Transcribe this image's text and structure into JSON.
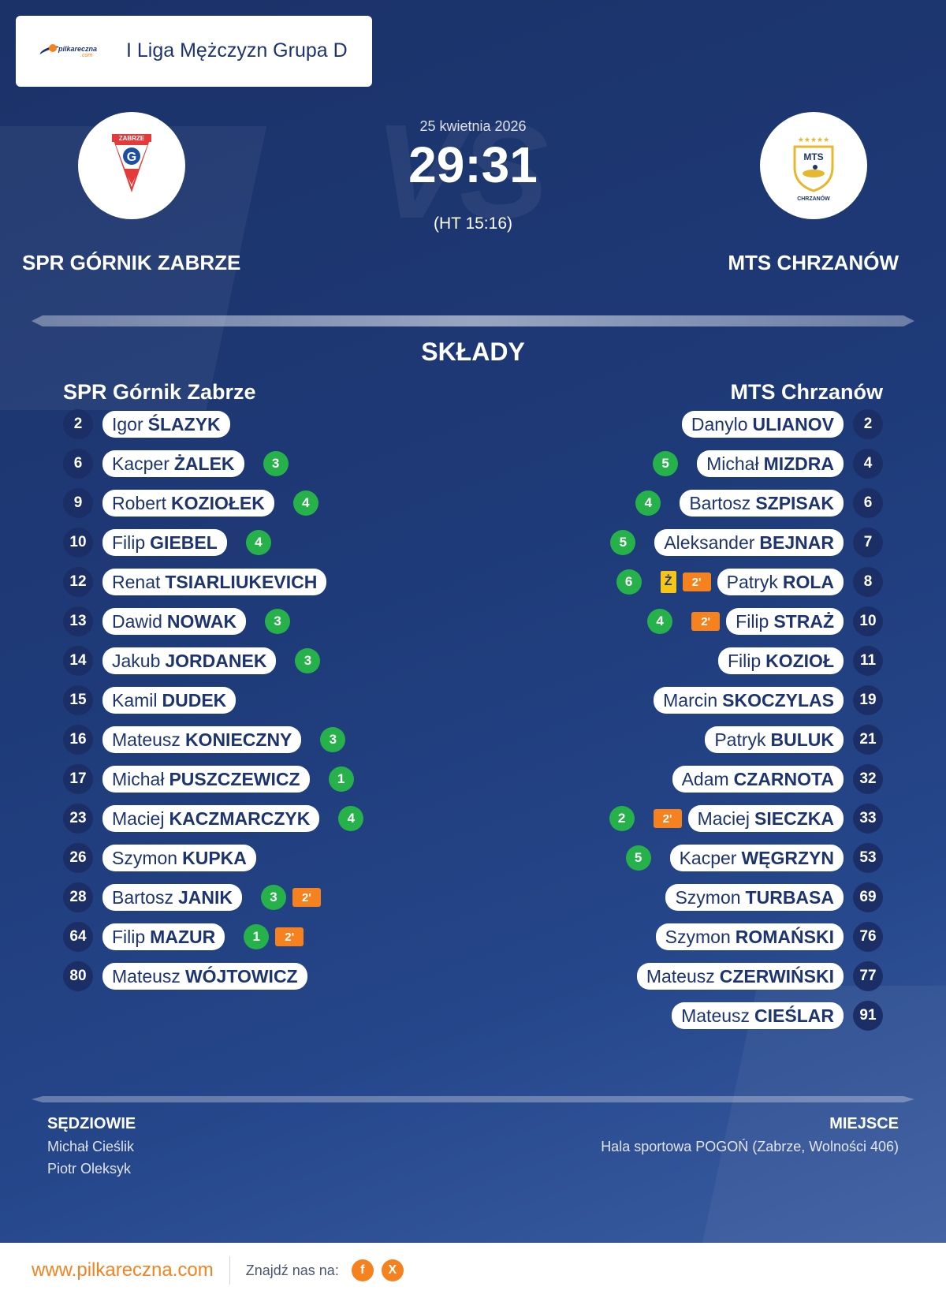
{
  "header": {
    "brand_name": "pilkareczna",
    "brand_domain": ".com",
    "league_title": "I Liga Mężczyzn Grupa D"
  },
  "match": {
    "date": "25 kwietnia 2026",
    "score": "29:31",
    "halftime": "(HT 15:16)",
    "vs_bg": "VS",
    "home_team": "SPR GÓRNIK ZABRZE",
    "away_team": "MTS CHRZANÓW",
    "home_logo_text": "ZABRZE",
    "home_logo_letter": "G",
    "away_logo_text": "MTS",
    "away_logo_subtext": "CHRZANÓW"
  },
  "lineups": {
    "title": "SKŁADY",
    "home": {
      "name": "SPR Górnik Zabrze",
      "players": [
        {
          "number": "2",
          "first": "Igor",
          "last": "ŚLAZYK",
          "goals": "",
          "susp": "",
          "yellow": ""
        },
        {
          "number": "6",
          "first": "Kacper",
          "last": "ŻALEK",
          "goals": "3",
          "susp": "",
          "yellow": ""
        },
        {
          "number": "9",
          "first": "Robert",
          "last": "KOZIOŁEK",
          "goals": "4",
          "susp": "",
          "yellow": ""
        },
        {
          "number": "10",
          "first": "Filip",
          "last": "GIEBEL",
          "goals": "4",
          "susp": "",
          "yellow": ""
        },
        {
          "number": "12",
          "first": "Renat",
          "last": "TSIARLIUKEVICH",
          "goals": "",
          "susp": "",
          "yellow": ""
        },
        {
          "number": "13",
          "first": "Dawid",
          "last": "NOWAK",
          "goals": "3",
          "susp": "",
          "yellow": ""
        },
        {
          "number": "14",
          "first": "Jakub",
          "last": "JORDANEK",
          "goals": "3",
          "susp": "",
          "yellow": ""
        },
        {
          "number": "15",
          "first": "Kamil",
          "last": "DUDEK",
          "goals": "",
          "susp": "",
          "yellow": ""
        },
        {
          "number": "16",
          "first": "Mateusz",
          "last": "KONIECZNY",
          "goals": "3",
          "susp": "",
          "yellow": ""
        },
        {
          "number": "17",
          "first": "Michał",
          "last": "PUSZCZEWICZ",
          "goals": "1",
          "susp": "",
          "yellow": ""
        },
        {
          "number": "23",
          "first": "Maciej",
          "last": "KACZMARCZYK",
          "goals": "4",
          "susp": "",
          "yellow": ""
        },
        {
          "number": "26",
          "first": "Szymon",
          "last": "KUPKA",
          "goals": "",
          "susp": "",
          "yellow": ""
        },
        {
          "number": "28",
          "first": "Bartosz",
          "last": "JANIK",
          "goals": "3",
          "susp": "2'",
          "yellow": ""
        },
        {
          "number": "64",
          "first": "Filip",
          "last": "MAZUR",
          "goals": "1",
          "susp": "2'",
          "yellow": ""
        },
        {
          "number": "80",
          "first": "Mateusz",
          "last": "WÓJTOWICZ",
          "goals": "",
          "susp": "",
          "yellow": ""
        }
      ]
    },
    "away": {
      "name": "MTS Chrzanów",
      "players": [
        {
          "number": "2",
          "first": "Danylo",
          "last": "ULIANOV",
          "goals": "",
          "susp": "",
          "yellow": ""
        },
        {
          "number": "4",
          "first": "Michał",
          "last": "MIZDRA",
          "goals": "5",
          "susp": "",
          "yellow": ""
        },
        {
          "number": "6",
          "first": "Bartosz",
          "last": "SZPISAK",
          "goals": "4",
          "susp": "",
          "yellow": ""
        },
        {
          "number": "7",
          "first": "Aleksander",
          "last": "BEJNAR",
          "goals": "5",
          "susp": "",
          "yellow": ""
        },
        {
          "number": "8",
          "first": "Patryk",
          "last": "ROLA",
          "goals": "6",
          "susp": "2'",
          "yellow": "Ż"
        },
        {
          "number": "10",
          "first": "Filip",
          "last": "STRAŻ",
          "goals": "4",
          "susp": "2'",
          "yellow": ""
        },
        {
          "number": "11",
          "first": "Filip",
          "last": "KOZIOŁ",
          "goals": "",
          "susp": "",
          "yellow": ""
        },
        {
          "number": "19",
          "first": "Marcin",
          "last": "SKOCZYLAS",
          "goals": "",
          "susp": "",
          "yellow": ""
        },
        {
          "number": "21",
          "first": "Patryk",
          "last": "BULUK",
          "goals": "",
          "susp": "",
          "yellow": ""
        },
        {
          "number": "32",
          "first": "Adam",
          "last": "CZARNOTA",
          "goals": "",
          "susp": "",
          "yellow": ""
        },
        {
          "number": "33",
          "first": "Maciej",
          "last": "SIECZKA",
          "goals": "2",
          "susp": "2'",
          "yellow": ""
        },
        {
          "number": "53",
          "first": "Kacper",
          "last": "WĘGRZYN",
          "goals": "5",
          "susp": "",
          "yellow": ""
        },
        {
          "number": "69",
          "first": "Szymon",
          "last": "TURBASA",
          "goals": "",
          "susp": "",
          "yellow": ""
        },
        {
          "number": "76",
          "first": "Szymon",
          "last": "ROMAŃSKI",
          "goals": "",
          "susp": "",
          "yellow": ""
        },
        {
          "number": "77",
          "first": "Mateusz",
          "last": "CZERWIŃSKI",
          "goals": "",
          "susp": "",
          "yellow": ""
        },
        {
          "number": "91",
          "first": "Mateusz",
          "last": "CIEŚLAR",
          "goals": "",
          "susp": "",
          "yellow": ""
        }
      ]
    }
  },
  "officials": {
    "title": "SĘDZIOWIE",
    "names": [
      "Michał Cieślik",
      "Piotr Oleksyk"
    ]
  },
  "venue": {
    "title": "MIEJSCE",
    "name": "Hala sportowa POGOŃ (Zabrze, Wolności 406)"
  },
  "footer": {
    "url": "www.pilkareczna.com",
    "find_us": "Znajdź nas na:",
    "facebook_icon": "f",
    "x_icon": "X"
  },
  "colors": {
    "accent": "#f5821f",
    "goal_badge": "#27b14a",
    "navy": "#1d3470",
    "yellow_card": "#f5c518"
  }
}
